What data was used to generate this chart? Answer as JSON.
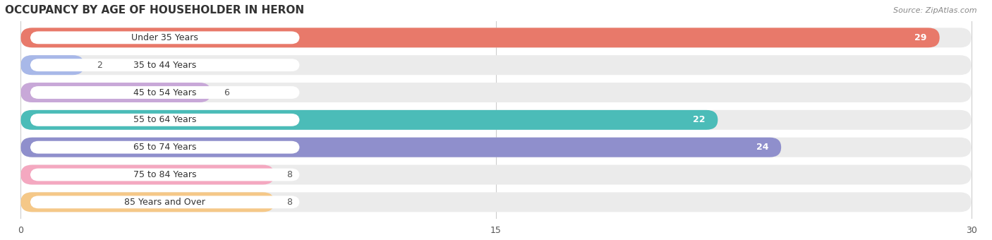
{
  "title": "OCCUPANCY BY AGE OF HOUSEHOLDER IN HERON",
  "source": "Source: ZipAtlas.com",
  "categories": [
    "Under 35 Years",
    "35 to 44 Years",
    "45 to 54 Years",
    "55 to 64 Years",
    "65 to 74 Years",
    "75 to 84 Years",
    "85 Years and Over"
  ],
  "values": [
    29,
    2,
    6,
    22,
    24,
    8,
    8
  ],
  "bar_colors": [
    "#E8796A",
    "#A8B8E8",
    "#C8A8D8",
    "#4BBCB8",
    "#8F8FCC",
    "#F4A8C0",
    "#F5C888"
  ],
  "bar_bg_color": "#EBEBEB",
  "xlim": [
    0,
    30
  ],
  "xticks": [
    0,
    15,
    30
  ],
  "title_fontsize": 11,
  "label_fontsize": 9,
  "value_fontsize": 9,
  "bg_color": "#ffffff"
}
